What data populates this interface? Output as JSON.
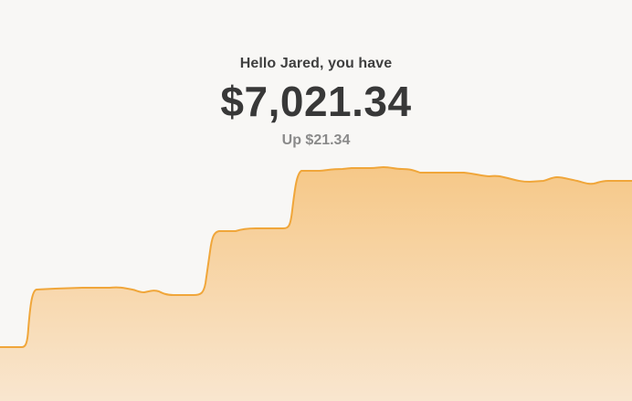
{
  "account": {
    "greeting": "Hello Jared, you have",
    "balance": "$7,021.34",
    "change": "Up $21.34"
  },
  "colors": {
    "background": "#f8f7f5",
    "line": "#f0a63a",
    "fill_top": "#f6c888",
    "fill_bottom": "#f9e6cf"
  },
  "chart_data": {
    "type": "area",
    "x": [
      0,
      1,
      2,
      3,
      4,
      5,
      6,
      7,
      8,
      9,
      10,
      11,
      12,
      13,
      14,
      15,
      16,
      17,
      18,
      19,
      20,
      21,
      22,
      23,
      24,
      25,
      26,
      27,
      28,
      29,
      30,
      31,
      32,
      33,
      34,
      35
    ],
    "values": [
      1200,
      1200,
      1200,
      2800,
      2810,
      2815,
      2820,
      2790,
      2800,
      2760,
      2760,
      4400,
      4420,
      4430,
      4430,
      4440,
      6900,
      6920,
      6930,
      6935,
      6940,
      6930,
      6910,
      6910,
      6900,
      6880,
      6870,
      6860,
      6850,
      6860,
      6870,
      6860,
      6840,
      6850,
      6845,
      6845
    ]
  }
}
